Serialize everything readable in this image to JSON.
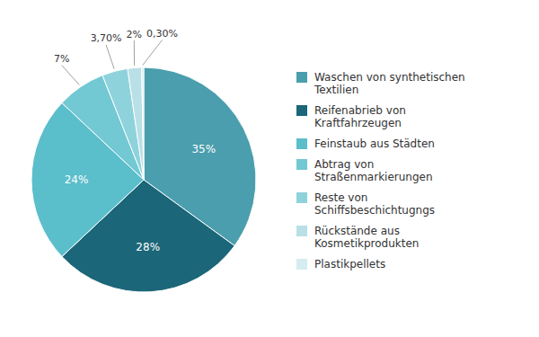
{
  "chart_data": {
    "type": "pie",
    "categories": [
      "Waschen von synthetischen\nTextilien",
      "Reifenabrieb von\nKraftfahrzeugen",
      "Feinstaub aus Städten",
      "Abtrag von\nStraßenmarkierungen",
      "Reste von\nSchiffsbeschichtugngs",
      "Rückstände aus\nKosmetikprodukten",
      "Plastikpellets"
    ],
    "values": [
      35,
      28,
      24,
      7,
      3.7,
      2,
      0.3
    ],
    "value_labels": [
      "35%",
      "28%",
      "24%",
      "7%",
      "3,70%",
      "2%",
      "0,30%"
    ],
    "colors": [
      "#4A9EAD",
      "#1B6678",
      "#5BBECB",
      "#72C8D3",
      "#8ED3DB",
      "#B8E0E6",
      "#D5ECF0"
    ],
    "data_labels": true,
    "legend": "right"
  }
}
